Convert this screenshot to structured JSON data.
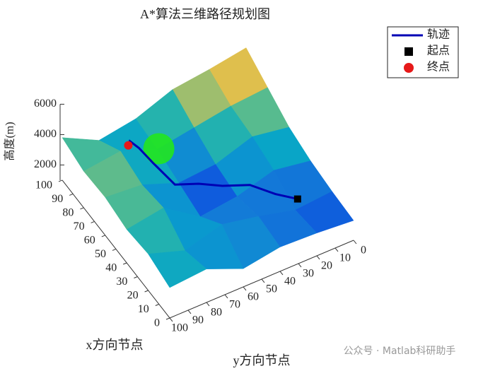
{
  "chart_data": {
    "type": "surface3d",
    "title": "A*算法三维路径规划图",
    "xlabel": "x方向节点",
    "ylabel": "y方向节点",
    "zlabel": "高度(m)",
    "xlim": [
      0,
      100
    ],
    "ylim": [
      0,
      100
    ],
    "zlim": [
      1000,
      6000
    ],
    "xticks": [
      0,
      10,
      20,
      30,
      40,
      50,
      60,
      70,
      80,
      90,
      100
    ],
    "yticks": [
      0,
      10,
      20,
      30,
      40,
      50,
      60,
      70,
      80,
      90,
      100
    ],
    "zticks": [
      2000,
      4000,
      6000
    ],
    "surface": {
      "x": [
        0,
        20,
        40,
        60,
        80,
        100
      ],
      "y": [
        0,
        20,
        40,
        60,
        80,
        100
      ],
      "z": [
        [
          2300,
          2500,
          2600,
          2200,
          3200,
          3000
        ],
        [
          2400,
          2200,
          2800,
          3300,
          2600,
          3400
        ],
        [
          2600,
          3000,
          2300,
          2000,
          3600,
          3200
        ],
        [
          3000,
          3400,
          2600,
          2400,
          3300,
          3500
        ],
        [
          3800,
          3600,
          3200,
          2800,
          3700,
          3400
        ],
        [
          4600,
          4200,
          3900,
          3000,
          2600,
          3800
        ]
      ]
    },
    "obstacle": {
      "x": 70,
      "y": 65,
      "z": 4000,
      "radius": 10,
      "color": "#22e61e"
    },
    "series": [
      {
        "name": "轨迹",
        "color": "#0000b4",
        "x": [
          23,
          30,
          40,
          45,
          50,
          55,
          70,
          80,
          85,
          83
        ],
        "y": [
          17,
          25,
          33,
          45,
          55,
          65,
          68,
          70,
          72,
          74
        ],
        "z": [
          2500,
          2600,
          2700,
          2800,
          3000,
          3000,
          3200,
          3400,
          3500,
          3500
        ]
      },
      {
        "name": "起点",
        "color": "#000000",
        "x": [
          23
        ],
        "y": [
          17
        ],
        "z": [
          2500
        ]
      },
      {
        "name": "终点",
        "color": "#e61919",
        "x": [
          83
        ],
        "y": [
          74
        ],
        "z": [
          3500
        ]
      }
    ],
    "legend": "upper right",
    "watermark": "公众号 · Matlab科研助手"
  }
}
